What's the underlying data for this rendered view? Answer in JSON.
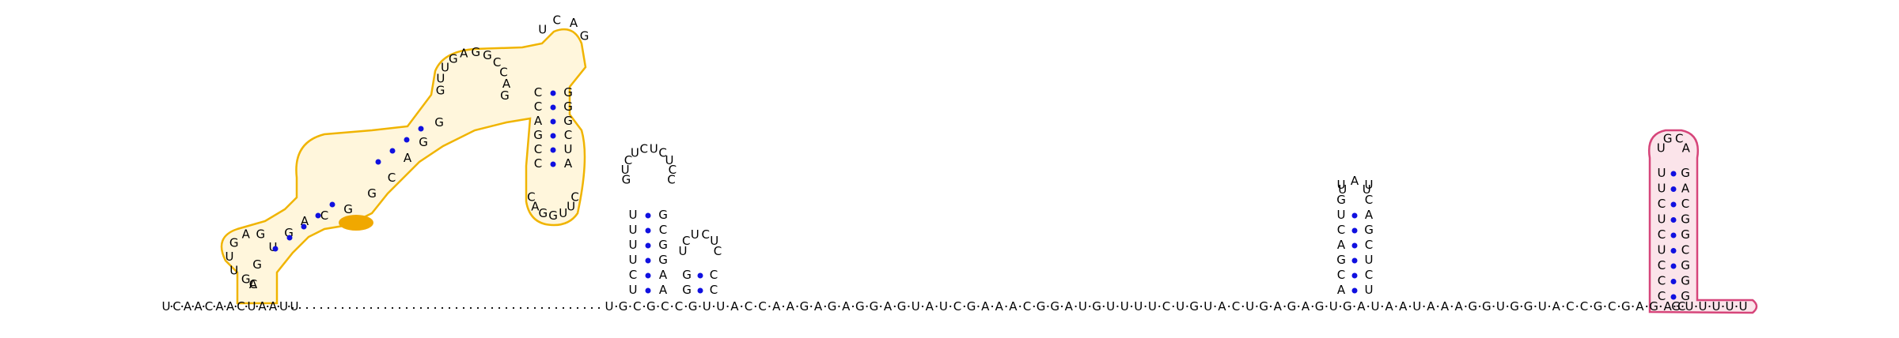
{
  "diagram": {
    "backbone_left": "UCAACAACUAAUU",
    "backbone_main": "UGCGCCGUUACCAAGAGAGGAGUAUCGAAACGGAUGUUUUCUGUACUGAGAGUGAUAAUAAAGGUGGUACCGCGAGAC",
    "tail": "GUUUUU",
    "stem_a_left": "AGUGACGGCAGGC",
    "stem_a_loop": "GUUGAGGCCAG",
    "stem_b_left": "UCUUUU",
    "stem_b_loop": "GUCUCUCUCC",
    "stem_c_left": "ACGACUGU",
    "stem_c_loop": "UAAGCCUGGA",
    "stem_d_left": "CCCUCUCUU",
    "stem_d_loop": "GCAUAGCGG",
    "colors": {
      "highlight_outline": "#f0b400",
      "highlight_fill": "#fff6dc",
      "highlight_strong": "#f0a800",
      "terminator_outline": "#d6457a",
      "terminator_fill": "#fbe4ea",
      "pair_dot": "#1010e0",
      "dots": "#000000"
    }
  }
}
